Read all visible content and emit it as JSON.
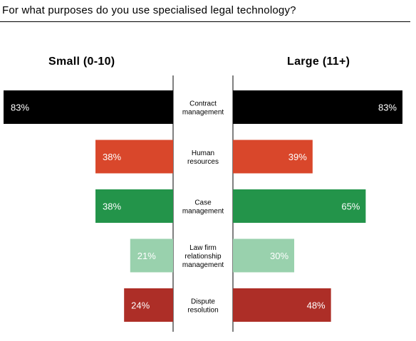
{
  "title": "For what purposes do you use specialised legal technology?",
  "groups": {
    "left": "Small (0-10)",
    "right": "Large (11+)"
  },
  "chart_data": {
    "type": "bar",
    "orientation": "horizontal-butterfly",
    "title": "For what purposes do you use specialised legal technology?",
    "categories": [
      [
        "Contract",
        "management"
      ],
      [
        "Human",
        "resources"
      ],
      [
        "Case",
        "management"
      ],
      [
        "Law firm",
        "relationship",
        "management"
      ],
      [
        "Dispute",
        "resolution"
      ]
    ],
    "series": [
      {
        "name": "Small (0-10)",
        "side": "left",
        "values": [
          83,
          38,
          38,
          21,
          24
        ],
        "labels": [
          "83%",
          "38%",
          "38%",
          "21%",
          "24%"
        ]
      },
      {
        "name": "Large (11+)",
        "side": "right",
        "values": [
          83,
          39,
          65,
          30,
          48
        ],
        "labels": [
          "83%",
          "39%",
          "65%",
          "30%",
          "48%"
        ]
      }
    ],
    "colors": [
      "#000000",
      "#d9472b",
      "#23944a",
      "#99d1ad",
      "#ad2e27"
    ],
    "xlim": [
      0,
      83
    ],
    "grid": false,
    "legend": "none"
  }
}
